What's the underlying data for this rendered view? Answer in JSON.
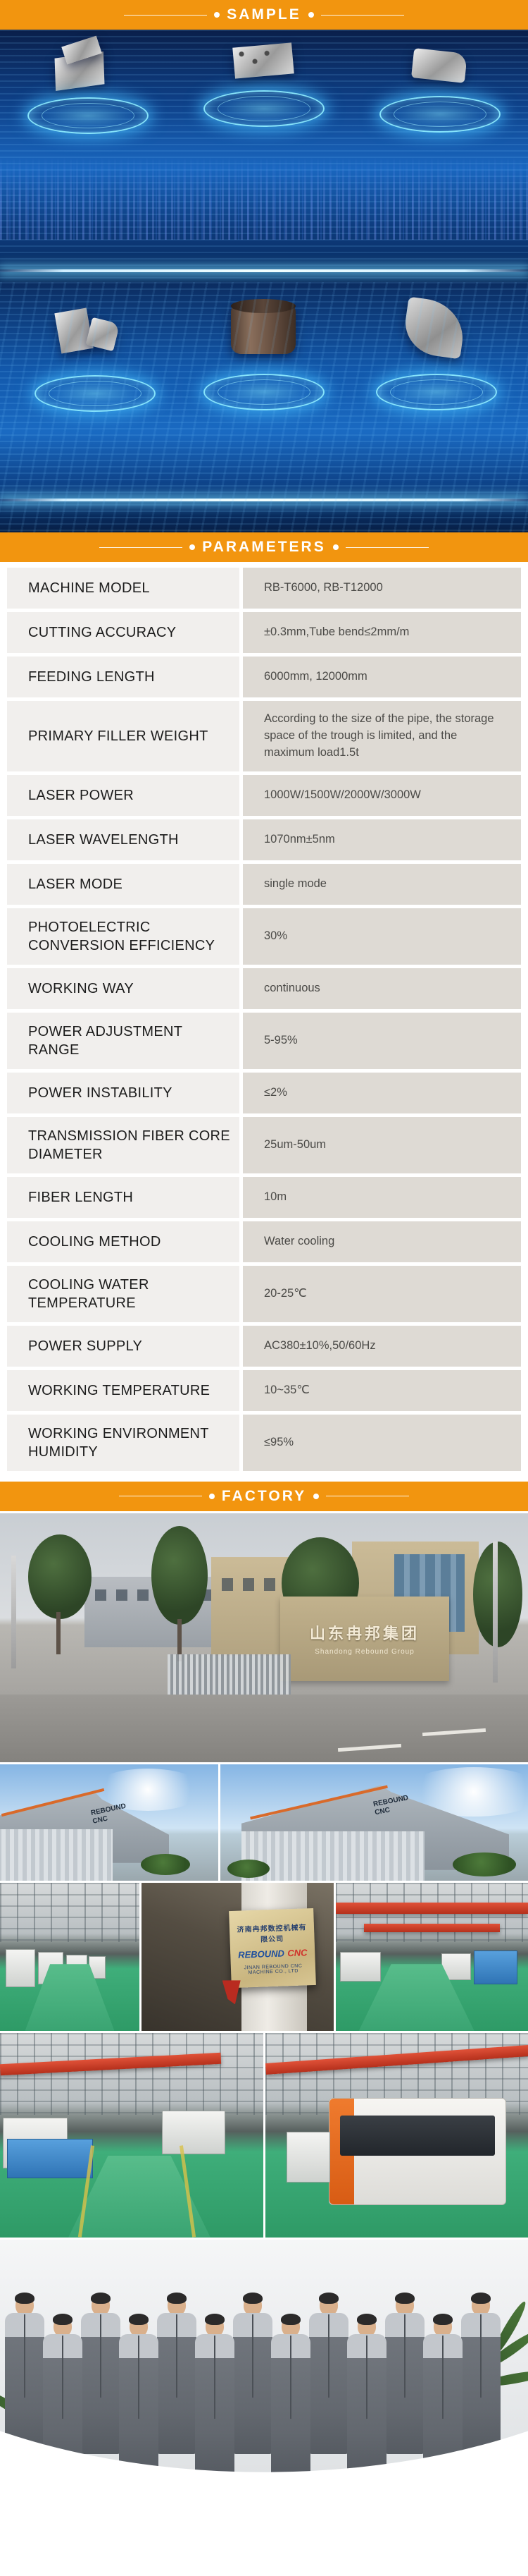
{
  "banners": {
    "sample": "SAMPLE",
    "parameters": "PARAMETERS",
    "factory": "FACTORY"
  },
  "colors": {
    "accent_orange": "#F2950F",
    "hero_blue": "#1A67C0",
    "glow_cyan": "#8CEBFF",
    "table_label_bg": "#F1EFED",
    "table_value_bg": "#DEDAD4",
    "crane_red": "#D8402E",
    "floor_green": "#3FAE7A"
  },
  "sample_section": {
    "parts_row1": [
      "metal-angle-bracket",
      "metal-clamp-block",
      "metal-hinge-bracket"
    ],
    "parts_row2": [
      "metal-clamp-part",
      "steel-tube-section",
      "curved-metal-sheet"
    ]
  },
  "parameters_table": {
    "rows": [
      {
        "label": "MACHINE MODEL",
        "value": "RB-T6000, RB-T12000"
      },
      {
        "label": "CUTTING ACCURACY",
        "value": "±0.3mm,Tube bend≤2mm/m"
      },
      {
        "label": "FEEDING LENGTH",
        "value": "6000mm, 12000mm"
      },
      {
        "label": "PRIMARY FILLER WEIGHT",
        "value": "According to the size of the pipe, the storage space of the trough is limited, and the maximum load1.5t"
      },
      {
        "label": "LASER POWER",
        "value": "1000W/1500W/2000W/3000W"
      },
      {
        "label": "LASER WAVELENGTH",
        "value": "1070nm±5nm"
      },
      {
        "label": "LASER MODE",
        "value": "single mode"
      },
      {
        "label": "PHOTOELECTRIC CONVERSION EFFICIENCY",
        "value": "30%"
      },
      {
        "label": "WORKING WAY",
        "value": "continuous"
      },
      {
        "label": "POWER ADJUSTMENT RANGE",
        "value": "5-95%"
      },
      {
        "label": "POWER INSTABILITY",
        "value": "≤2%"
      },
      {
        "label": "TRANSMISSION FIBER CORE DIAMETER",
        "value": "25um-50um"
      },
      {
        "label": "FIBER LENGTH",
        "value": "10m"
      },
      {
        "label": "COOLING METHOD",
        "value": "Water cooling"
      },
      {
        "label": "COOLING WATER TEMPERATURE",
        "value": "20-25℃"
      },
      {
        "label": "POWER SUPPLY",
        "value": "AC380±10%,50/60Hz"
      },
      {
        "label": "WORKING TEMPERATURE",
        "value": "10~35℃"
      },
      {
        "label": "WORKING ENVIRONMENT HUMIDITY",
        "value": "≤95%"
      }
    ]
  },
  "factory": {
    "gate_sign_cn": "山东冉邦集团",
    "gate_sign_en": "Shandong Rebound Group",
    "warehouse_brand": "REBOUND CNC",
    "plaque_title_cn": "济南冉邦数控机械有限公司",
    "plaque_brand_1": "REBOUND",
    "plaque_brand_2": "CNC",
    "plaque_company_en": "JINAN REBOUND CNC MACHINE CO., LTD",
    "team_member_count": 13
  }
}
